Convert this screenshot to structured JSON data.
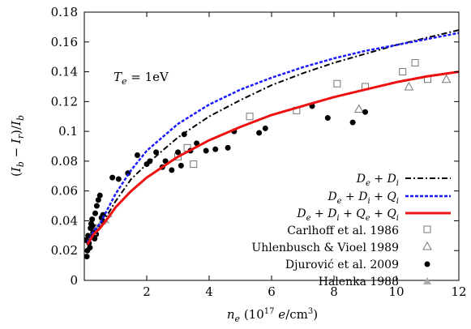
{
  "chart_data": {
    "type": "scatter",
    "xlabel": "n_e (10^17 e/cm^3)",
    "ylabel": "(I_b − I_r)/I_b",
    "xlim": [
      0,
      12
    ],
    "ylim": [
      0,
      0.18
    ],
    "x_ticks": [
      "2",
      "4",
      "6",
      "8",
      "10",
      "12"
    ],
    "y_ticks": [
      "0",
      "0.02",
      "0.04",
      "0.06",
      "0.08",
      "0.1",
      "0.12",
      "0.14",
      "0.16",
      "0.18"
    ],
    "annotation": "T_e = 1eV",
    "legend_position": "bottom-right",
    "grid": false,
    "series": [
      {
        "name": "D_e + D_i",
        "kind": "line",
        "style": "dash-dot",
        "color": "#000000",
        "x": [
          0.1,
          0.3,
          0.5,
          0.8,
          1.0,
          1.5,
          2.0,
          3.0,
          4.0,
          5.0,
          6.0,
          7.0,
          8.0,
          9.0,
          10.0,
          11.0,
          12.0
        ],
        "y": [
          0.025,
          0.033,
          0.037,
          0.046,
          0.053,
          0.068,
          0.078,
          0.096,
          0.11,
          0.121,
          0.131,
          0.139,
          0.146,
          0.152,
          0.158,
          0.163,
          0.168
        ]
      },
      {
        "name": "D_e + D_i + Q_i",
        "kind": "line",
        "style": "dashed",
        "color": "#1a1aff",
        "x": [
          0.1,
          0.3,
          0.5,
          0.8,
          1.0,
          1.5,
          2.0,
          3.0,
          4.0,
          5.0,
          6.0,
          7.0,
          8.0,
          9.0,
          10.0,
          11.0,
          12.0
        ],
        "y": [
          0.025,
          0.033,
          0.038,
          0.05,
          0.058,
          0.074,
          0.087,
          0.105,
          0.118,
          0.128,
          0.136,
          0.143,
          0.149,
          0.154,
          0.158,
          0.162,
          0.166
        ]
      },
      {
        "name": "D_e + D_i + Q_e + Q_i",
        "kind": "line",
        "style": "solid",
        "color": "#ee1111",
        "x": [
          0.1,
          0.3,
          0.5,
          0.8,
          1.0,
          1.5,
          2.0,
          3.0,
          4.0,
          5.0,
          6.0,
          7.0,
          8.0,
          9.0,
          10.0,
          11.0,
          12.0
        ],
        "y": [
          0.024,
          0.031,
          0.035,
          0.043,
          0.049,
          0.06,
          0.069,
          0.083,
          0.094,
          0.103,
          0.111,
          0.117,
          0.123,
          0.128,
          0.133,
          0.137,
          0.14
        ]
      },
      {
        "name": "Carlhoff et al. 1986",
        "kind": "points",
        "marker": "square",
        "color": "#777777",
        "x": [
          3.0,
          3.3,
          3.5,
          5.3,
          6.8,
          8.1,
          9.0,
          10.2,
          10.6,
          11.0
        ],
        "y": [
          0.083,
          0.089,
          0.078,
          0.11,
          0.114,
          0.132,
          0.13,
          0.14,
          0.146,
          0.135
        ]
      },
      {
        "name": "Uhlenbusch & Vioel 1989",
        "kind": "points",
        "marker": "triangle-open",
        "color": "#777777",
        "x": [
          8.8,
          10.4,
          11.6
        ],
        "y": [
          0.115,
          0.13,
          0.135
        ]
      },
      {
        "name": "Djurović et al. 2009",
        "kind": "points",
        "marker": "circle-filled",
        "color": "#000000",
        "x": [
          0.05,
          0.08,
          0.1,
          0.12,
          0.15,
          0.18,
          0.2,
          0.22,
          0.25,
          0.28,
          0.3,
          0.33,
          0.35,
          0.38,
          0.4,
          0.43,
          0.45,
          0.5,
          0.55,
          0.6,
          0.9,
          1.1,
          1.4,
          1.7,
          2.0,
          2.1,
          2.3,
          2.5,
          2.6,
          2.8,
          3.0,
          3.1,
          3.2,
          3.4,
          3.6,
          3.9,
          4.2,
          4.6,
          4.8,
          5.6,
          5.8,
          7.3,
          7.8,
          8.6,
          9.0
        ],
        "y": [
          0.027,
          0.016,
          0.02,
          0.03,
          0.025,
          0.022,
          0.035,
          0.038,
          0.041,
          0.032,
          0.036,
          0.028,
          0.045,
          0.031,
          0.05,
          0.035,
          0.054,
          0.057,
          0.042,
          0.044,
          0.069,
          0.068,
          0.072,
          0.084,
          0.078,
          0.08,
          0.086,
          0.076,
          0.08,
          0.074,
          0.086,
          0.077,
          0.098,
          0.087,
          0.092,
          0.087,
          0.088,
          0.089,
          0.1,
          0.099,
          0.102,
          0.117,
          0.109,
          0.106,
          0.113
        ]
      },
      {
        "name": "Halenka 1988",
        "kind": "points",
        "marker": "triangle-filled",
        "color": "#aaaaaa",
        "x": [
          0.3,
          0.4,
          0.5,
          0.6,
          0.7,
          0.8
        ],
        "y": [
          0.032,
          0.036,
          0.038,
          0.039,
          0.04,
          0.044
        ]
      }
    ]
  }
}
